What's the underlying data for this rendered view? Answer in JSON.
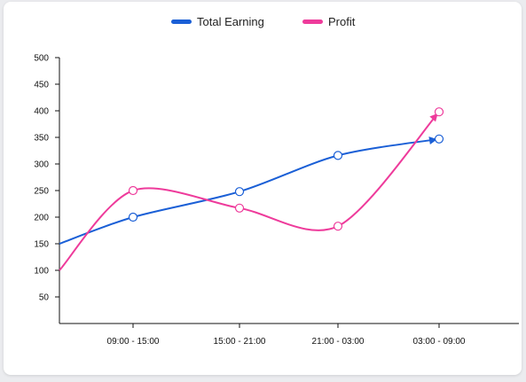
{
  "colors": {
    "total": "#1a5fd6",
    "profit": "#ee3b9b",
    "axis": "#111111"
  },
  "legend": {
    "total_label": "Total Earning",
    "profit_label": "Profit"
  },
  "chart_data": {
    "type": "line",
    "x": [
      "",
      "09:00 - 15:00",
      "15:00 - 21:00",
      "21:00 - 03:00",
      "03:00 - 09:00"
    ],
    "yticks": [
      50,
      100,
      150,
      200,
      250,
      300,
      350,
      400,
      450,
      500
    ],
    "ylim": [
      0,
      500
    ],
    "series": [
      {
        "name": "Total Earning",
        "values": [
          150,
          200,
          248,
          316,
          347
        ]
      },
      {
        "name": "Profit",
        "values": [
          100,
          250,
          217,
          183,
          398
        ]
      }
    ],
    "grid": false,
    "legend_position": "top-center"
  }
}
